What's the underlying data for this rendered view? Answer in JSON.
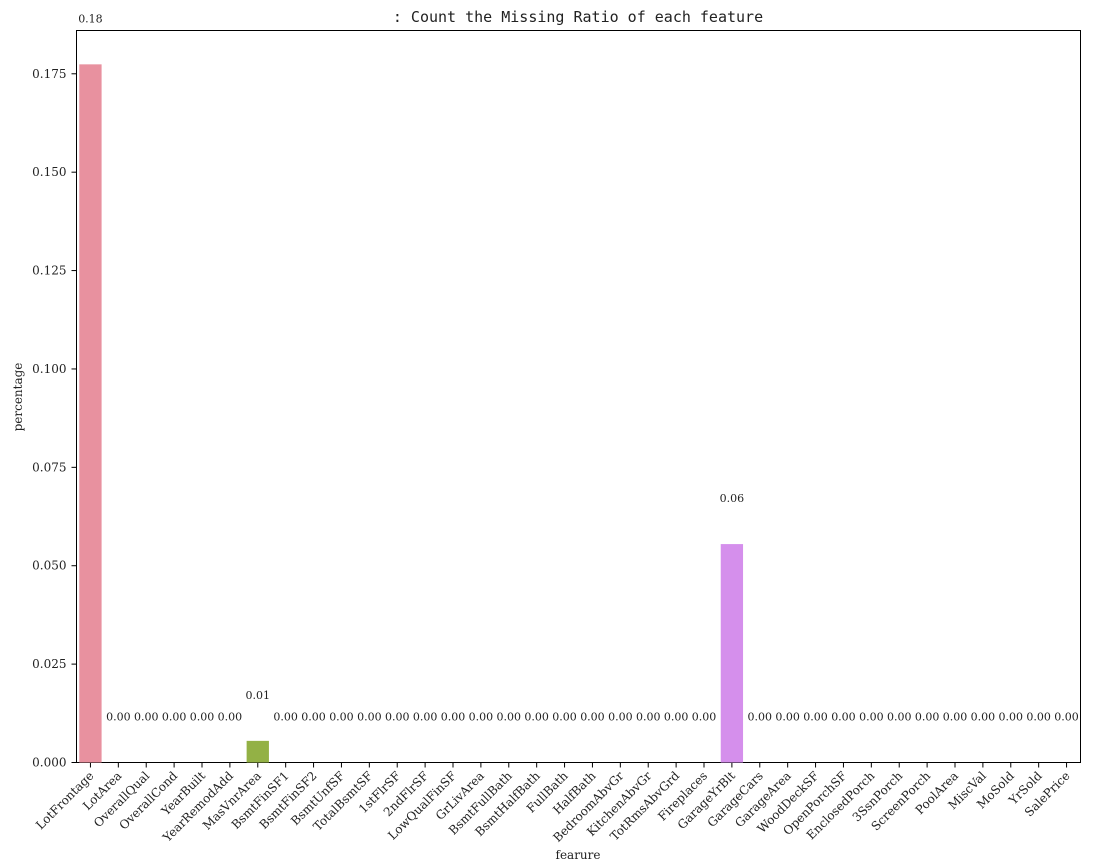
{
  "chart_data": {
    "type": "bar",
    "title": ": Count the Missing Ratio of each feature",
    "xlabel": "fearure",
    "ylabel": "percentage",
    "ylim": [
      0,
      0.186
    ],
    "yticks": [
      0.0,
      0.025,
      0.05,
      0.075,
      0.1,
      0.125,
      0.15,
      0.175
    ],
    "ytick_labels": [
      "0.000",
      "0.025",
      "0.050",
      "0.075",
      "0.100",
      "0.125",
      "0.150",
      "0.175"
    ],
    "grid": false,
    "categories": [
      "LotFrontage",
      "LotArea",
      "OverallQual",
      "OverallCond",
      "YearBuilt",
      "YearRemodAdd",
      "MasVnrArea",
      "BsmtFinSF1",
      "BsmtFinSF2",
      "BsmtUnfSF",
      "TotalBsmtSF",
      "1stFlrSF",
      "2ndFlrSF",
      "LowQualFinSF",
      "GrLivArea",
      "BsmtFullBath",
      "BsmtHalfBath",
      "FullBath",
      "HalfBath",
      "BedroomAbvGr",
      "KitchenAbvGr",
      "TotRmsAbvGrd",
      "Fireplaces",
      "GarageYrBlt",
      "GarageCars",
      "GarageArea",
      "WoodDeckSF",
      "OpenPorchSF",
      "EnclosedPorch",
      "3SsnPorch",
      "ScreenPorch",
      "PoolArea",
      "MiscVal",
      "MoSold",
      "YrSold",
      "SalePrice"
    ],
    "values": [
      0.1774,
      0,
      0,
      0,
      0,
      0,
      0.0055,
      0,
      0,
      0,
      0,
      0,
      0,
      0,
      0,
      0,
      0,
      0,
      0,
      0,
      0,
      0,
      0,
      0.0555,
      0,
      0,
      0,
      0,
      0,
      0,
      0,
      0,
      0,
      0,
      0,
      0
    ],
    "data_labels": [
      "0.18",
      "0.00",
      "0.00",
      "0.00",
      "0.00",
      "0.00",
      "0.01",
      "0.00",
      "0.00",
      "0.00",
      "0.00",
      "0.00",
      "0.00",
      "0.00",
      "0.00",
      "0.00",
      "0.00",
      "0.00",
      "0.00",
      "0.00",
      "0.00",
      "0.00",
      "0.00",
      "0.06",
      "0.00",
      "0.00",
      "0.00",
      "0.00",
      "0.00",
      "0.00",
      "0.00",
      "0.00",
      "0.00",
      "0.00",
      "0.00",
      "0.00"
    ],
    "colors": [
      "#e8919f",
      "#e59779",
      "#dba059",
      "#c9a24b",
      "#b9a844",
      "#a7ad45",
      "#93b145",
      "#6db445",
      "#4db65b",
      "#4cb78c",
      "#4cb6a0",
      "#4db5ae",
      "#4eb4b9",
      "#4fb3c3",
      "#51b1cc",
      "#52afd6",
      "#54abdf",
      "#56a6e6",
      "#5ca1ec",
      "#7a9cef",
      "#969ef0",
      "#b09cef",
      "#c698ef",
      "#d58fec",
      "#e28ae6",
      "#e989cf",
      "#ed8ab9",
      "#ee8ca5",
      "#e6909a",
      "#e09f88",
      "#cdb05c",
      "#b8ad45",
      "#9db145",
      "#74b444",
      "#52b65e",
      "#4eb78f"
    ]
  }
}
